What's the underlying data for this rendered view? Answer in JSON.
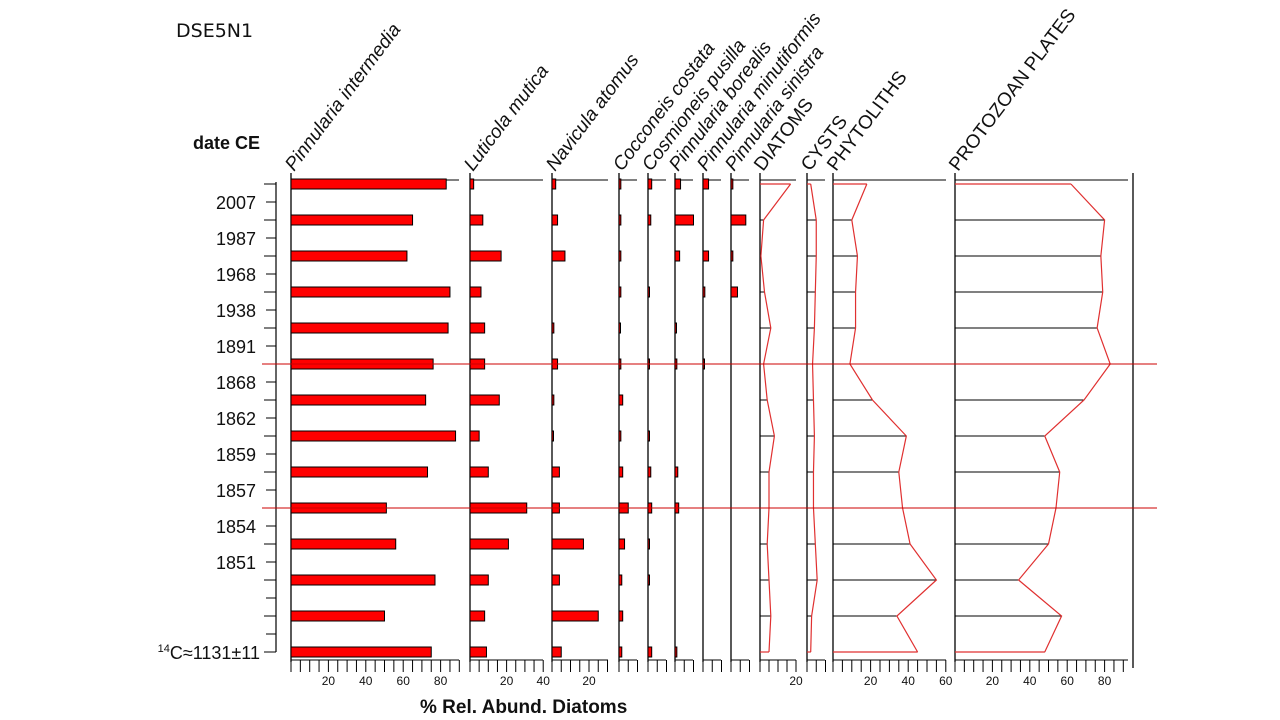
{
  "chart_data": {
    "type": "stratigraphic-diagram",
    "title": "DSE5N1",
    "ylabel": "date CE",
    "xlabel": "% Rel. Abund. Diatoms",
    "y_tick_labels": [
      "2007",
      "1987",
      "1968",
      "1938",
      "1891",
      "1868",
      "1862",
      "1859",
      "1857",
      "1854",
      "1851",
      "",
      "",
      "14C≈1131±11"
    ],
    "sample_count": 14,
    "horizon_markers_after_sample": [
      6,
      10
    ],
    "marker_color": "#cc0000",
    "bar_color": "#ff0000",
    "line_color": "#e03030",
    "panels": [
      {
        "name": "Pinnularia intermedia",
        "italic": true,
        "style": "bar",
        "xlim": [
          0,
          90
        ],
        "ticks": [
          20,
          40,
          60,
          80
        ],
        "values": [
          83,
          65,
          62,
          85,
          84,
          76,
          72,
          88,
          73,
          51,
          56,
          77,
          50,
          75
        ]
      },
      {
        "name": "Luticola mutica",
        "italic": true,
        "style": "bar",
        "xlim": [
          0,
          40
        ],
        "ticks": [
          20,
          40
        ],
        "values": [
          2,
          7,
          17,
          6,
          8,
          8,
          16,
          5,
          10,
          31,
          21,
          10,
          8,
          9
        ]
      },
      {
        "name": "Navicula atomus",
        "italic": true,
        "style": "bar",
        "xlim": [
          0,
          30
        ],
        "ticks": [
          20
        ],
        "values": [
          2,
          3,
          7,
          0,
          1,
          3,
          1,
          0.5,
          4,
          4,
          17,
          4,
          25,
          5
        ]
      },
      {
        "name": "Cocconeis costata",
        "italic": true,
        "style": "bar",
        "xlim": [
          0,
          10
        ],
        "ticks": [],
        "values": [
          1,
          1,
          1,
          1,
          0.5,
          1,
          2,
          1,
          2,
          5,
          3,
          1.5,
          2,
          1.5
        ]
      },
      {
        "name": "Cosmioneis pusilla",
        "italic": true,
        "style": "bar",
        "xlim": [
          0,
          10
        ],
        "ticks": [],
        "values": [
          2,
          1.5,
          0,
          0.5,
          0,
          0.5,
          0,
          0.5,
          1.5,
          2,
          0.5,
          0.5,
          0,
          2
        ]
      },
      {
        "name": "Pinnularia borealis",
        "italic": true,
        "style": "bar",
        "xlim": [
          0,
          10
        ],
        "ticks": [],
        "values": [
          3,
          10,
          2.5,
          0,
          0.5,
          1,
          0,
          0,
          1.5,
          2,
          0,
          0,
          0,
          1
        ]
      },
      {
        "name": "Pinnularia minutiformis",
        "italic": true,
        "style": "bar",
        "xlim": [
          0,
          10
        ],
        "ticks": [],
        "values": [
          3,
          0,
          3,
          1,
          0,
          0.5,
          0,
          0,
          0,
          0,
          0,
          0,
          0,
          0
        ]
      },
      {
        "name": "Pinnularia sinistra",
        "italic": true,
        "style": "bar",
        "xlim": [
          0,
          10
        ],
        "ticks": [],
        "values": [
          1,
          8,
          1,
          3.5,
          0,
          0,
          0,
          0,
          0,
          0,
          0,
          0,
          0,
          0
        ]
      },
      {
        "name": "DIATOMS",
        "italic": false,
        "style": "line",
        "xlim": [
          0,
          25
        ],
        "ticks": [
          20
        ],
        "values": [
          17,
          2,
          0.5,
          2.5,
          6,
          2,
          4,
          8,
          5,
          5,
          4,
          5,
          6,
          5
        ]
      },
      {
        "name": "CYSTS",
        "italic": false,
        "style": "line",
        "xlim": [
          0,
          10
        ],
        "ticks": [],
        "values": [
          2,
          5,
          5,
          4.5,
          4,
          3,
          3.5,
          4,
          3.5,
          3.5,
          4.5,
          5.5,
          2.5,
          2
        ]
      },
      {
        "name": "PHYTOLITHS",
        "italic": false,
        "style": "line",
        "xlim": [
          0,
          60
        ],
        "ticks": [
          20,
          40,
          60
        ],
        "values": [
          18,
          10,
          13,
          12,
          12,
          9,
          21,
          39,
          35,
          37,
          41,
          55,
          34,
          45
        ]
      },
      {
        "name": "PROTOZOAN  PLATES",
        "italic": false,
        "style": "line",
        "xlim": [
          0,
          90
        ],
        "ticks": [
          20,
          40,
          60,
          80
        ],
        "values": [
          62,
          80,
          78,
          79,
          76,
          83,
          69,
          48,
          56,
          54,
          50,
          34,
          57,
          48
        ]
      }
    ]
  }
}
